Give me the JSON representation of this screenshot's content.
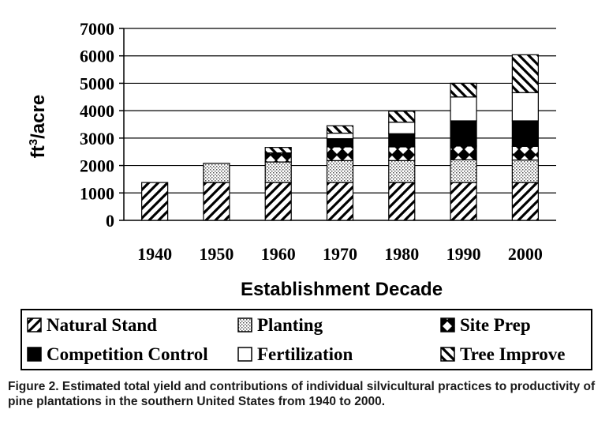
{
  "chart_data": {
    "type": "bar",
    "stacked": true,
    "title": "",
    "xlabel": "Establishment Decade",
    "ylabel_main": "ft",
    "ylabel_sup": "3",
    "ylabel_rest": "/acre",
    "ylim": [
      0,
      7000
    ],
    "yticks": [
      "0",
      "1000",
      "2000",
      "3000",
      "4000",
      "5000",
      "6000",
      "7000"
    ],
    "categories": [
      "1940",
      "1950",
      "1960",
      "1970",
      "1980",
      "1990",
      "2000"
    ],
    "grid": true,
    "legend_position": "bottom",
    "series": [
      {
        "name": "Natural Stand",
        "pattern": "diagonal-forward",
        "values": [
          1380,
          1380,
          1380,
          1380,
          1380,
          1380,
          1380
        ]
      },
      {
        "name": "Planting",
        "pattern": "dotted",
        "values": [
          0,
          700,
          750,
          800,
          800,
          830,
          820
        ]
      },
      {
        "name": "Site Prep",
        "pattern": "checker",
        "values": [
          0,
          0,
          330,
          500,
          500,
          500,
          500
        ]
      },
      {
        "name": "Competition Control",
        "pattern": "solid-black",
        "values": [
          0,
          0,
          0,
          300,
          480,
          920,
          930
        ]
      },
      {
        "name": "Fertilization",
        "pattern": "white",
        "values": [
          0,
          0,
          0,
          200,
          420,
          870,
          1030
        ]
      },
      {
        "name": "Tree Improve",
        "pattern": "diagonal-backward",
        "values": [
          0,
          0,
          200,
          270,
          400,
          500,
          1380
        ]
      }
    ]
  },
  "caption": "Figure 2. Estimated total yield and contributions of individual silvicultural practices to productivity of pine plantations in the southern United States from 1940 to 2000."
}
